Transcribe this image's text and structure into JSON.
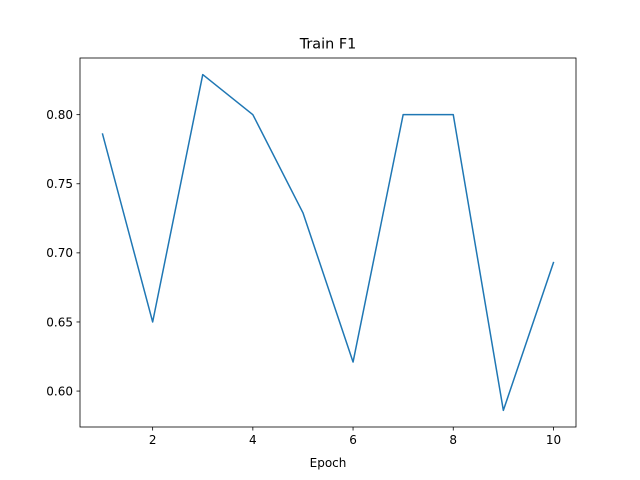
{
  "chart_data": {
    "type": "line",
    "title": "Train F1",
    "xlabel": "Epoch",
    "ylabel": "",
    "x": [
      1,
      2,
      3,
      4,
      5,
      6,
      7,
      8,
      9,
      10
    ],
    "series": [
      {
        "values": [
          0.786,
          0.65,
          0.829,
          0.8,
          0.729,
          0.621,
          0.8,
          0.8,
          0.586,
          0.693
        ],
        "color": "#1f77b4"
      }
    ],
    "xlim": [
      0.55,
      10.45
    ],
    "ylim": [
      0.574,
      0.841
    ],
    "xticks": [
      2,
      4,
      6,
      8,
      10
    ],
    "xtick_labels": [
      "2",
      "4",
      "6",
      "8",
      "10"
    ],
    "yticks": [
      0.6,
      0.65,
      0.7,
      0.75,
      0.8
    ],
    "ytick_labels": [
      "0.60",
      "0.65",
      "0.70",
      "0.75",
      "0.80"
    ],
    "grid": false,
    "legend": "none"
  }
}
